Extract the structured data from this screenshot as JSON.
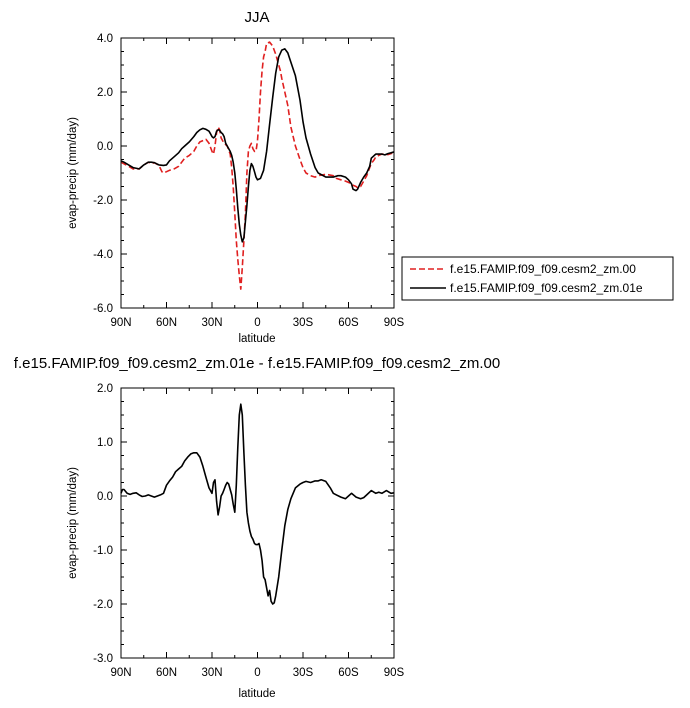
{
  "colors": {
    "series_0": "#e02020",
    "series_1": "#000000",
    "axis": "#000000"
  },
  "chart_data": [
    {
      "type": "line",
      "title": "JJA",
      "xlabel": "latitude",
      "ylabel": "evap-precip (mm/day)",
      "xlim": [
        90,
        -90
      ],
      "ylim": [
        -6.0,
        4.0
      ],
      "xticks": [
        90,
        60,
        30,
        0,
        -30,
        -60,
        -90
      ],
      "xtick_labels": [
        "90N",
        "60N",
        "30N",
        "0",
        "30S",
        "60S",
        "90S"
      ],
      "yticks": [
        -6.0,
        -4.0,
        -2.0,
        0.0,
        2.0,
        4.0
      ],
      "ytick_labels": [
        "-6.0",
        "-4.0",
        "-2.0",
        "0.0",
        "2.0",
        "4.0"
      ],
      "grid": false,
      "legend_position": "outside-right",
      "series": [
        {
          "name": "f.e15.FAMIP.f09_f09.cesm2_zm.00",
          "style": "dashed",
          "color": "#e02020",
          "x": [
            90,
            85,
            82,
            78,
            75,
            72,
            70,
            68,
            65,
            63,
            62,
            60,
            58,
            55,
            52,
            50,
            48,
            45,
            42,
            40,
            38,
            36,
            34,
            32,
            30,
            29,
            28,
            27,
            26,
            25,
            24,
            23,
            22,
            20,
            18,
            17,
            16,
            15,
            14,
            13,
            12,
            11,
            10,
            9,
            8,
            7,
            6,
            5,
            4,
            3,
            2,
            1,
            0,
            -1,
            -2,
            -3,
            -4,
            -5,
            -6,
            -8,
            -10,
            -12,
            -14,
            -15,
            -16,
            -18,
            -20,
            -22,
            -25,
            -28,
            -30,
            -32,
            -35,
            -38,
            -40,
            -45,
            -50,
            -52,
            -55,
            -58,
            -60,
            -62,
            -63,
            -65,
            -66,
            -68,
            -70,
            -72,
            -74,
            -75,
            -77,
            -78,
            -80,
            -82,
            -84,
            -86,
            -88,
            -90
          ],
          "y": [
            -0.6,
            -0.75,
            -0.85,
            -0.85,
            -0.7,
            -0.6,
            -0.65,
            -0.62,
            -0.72,
            -0.95,
            -1.0,
            -0.95,
            -0.9,
            -0.85,
            -0.75,
            -0.6,
            -0.45,
            -0.35,
            -0.2,
            0.0,
            0.15,
            0.2,
            0.25,
            0.1,
            -0.2,
            -0.3,
            0.0,
            0.5,
            0.7,
            0.6,
            0.3,
            0.2,
            0.1,
            0.0,
            -0.3,
            -0.8,
            -1.5,
            -2.5,
            -3.5,
            -4.2,
            -4.8,
            -5.3,
            -4.5,
            -3.5,
            -2.5,
            -1.0,
            -0.2,
            0.0,
            0.1,
            -0.1,
            -0.2,
            -0.2,
            0.2,
            1.0,
            2.0,
            2.8,
            3.3,
            3.5,
            3.8,
            3.85,
            3.7,
            3.4,
            3.0,
            2.8,
            2.5,
            2.0,
            1.5,
            0.7,
            0.0,
            -0.5,
            -0.8,
            -1.0,
            -1.1,
            -1.15,
            -1.1,
            -1.05,
            -1.1,
            -1.2,
            -1.25,
            -1.3,
            -1.35,
            -1.4,
            -1.45,
            -1.5,
            -1.55,
            -1.5,
            -1.3,
            -1.1,
            -0.8,
            -0.65,
            -0.5,
            -0.4,
            -0.35,
            -0.3,
            -0.3,
            -0.32,
            -0.28,
            -0.25
          ]
        },
        {
          "name": "f.e15.FAMIP.f09_f09.cesm2_zm.01e",
          "style": "solid",
          "color": "#000000",
          "x": [
            90,
            88,
            85,
            82,
            78,
            75,
            72,
            70,
            68,
            65,
            62,
            60,
            58,
            55,
            52,
            50,
            48,
            45,
            42,
            40,
            38,
            36,
            34,
            32,
            31,
            30,
            29,
            28,
            27,
            26,
            25,
            24,
            23,
            22,
            21,
            20,
            18,
            17,
            16,
            15,
            14,
            13,
            12,
            11,
            10,
            9,
            8,
            7,
            6,
            5,
            4,
            3,
            2,
            1,
            0,
            -2,
            -4,
            -6,
            -8,
            -10,
            -12,
            -14,
            -16,
            -18,
            -20,
            -22,
            -25,
            -28,
            -30,
            -32,
            -35,
            -38,
            -40,
            -45,
            -50,
            -53,
            -55,
            -58,
            -60,
            -62,
            -63,
            -65,
            -66,
            -68,
            -70,
            -72,
            -74,
            -75,
            -77,
            -78,
            -80,
            -82,
            -84,
            -86,
            -88,
            -90
          ],
          "y": [
            -0.55,
            -0.6,
            -0.7,
            -0.8,
            -0.85,
            -0.7,
            -0.6,
            -0.6,
            -0.62,
            -0.7,
            -0.72,
            -0.7,
            -0.55,
            -0.4,
            -0.25,
            -0.1,
            0.0,
            0.15,
            0.35,
            0.5,
            0.6,
            0.65,
            0.62,
            0.55,
            0.45,
            0.35,
            0.3,
            0.35,
            0.55,
            0.6,
            0.58,
            0.5,
            0.45,
            0.35,
            0.1,
            0.0,
            -0.2,
            -0.35,
            -0.6,
            -1.0,
            -1.6,
            -2.3,
            -2.9,
            -3.3,
            -3.55,
            -3.4,
            -2.8,
            -2.2,
            -1.5,
            -0.9,
            -0.65,
            -0.75,
            -0.95,
            -1.15,
            -1.25,
            -1.2,
            -0.9,
            -0.2,
            0.8,
            1.8,
            2.7,
            3.3,
            3.55,
            3.6,
            3.45,
            3.1,
            2.6,
            1.7,
            0.9,
            0.3,
            -0.3,
            -0.8,
            -1.0,
            -1.15,
            -1.15,
            -1.1,
            -1.1,
            -1.15,
            -1.25,
            -1.4,
            -1.6,
            -1.65,
            -1.6,
            -1.35,
            -1.15,
            -1.0,
            -0.75,
            -0.45,
            -0.35,
            -0.3,
            -0.3,
            -0.3,
            -0.33,
            -0.28,
            -0.25,
            -0.22
          ]
        }
      ]
    },
    {
      "type": "line",
      "title": "f.e15.FAMIP.f09_f09.cesm2_zm.01e - f.e15.FAMIP.f09_f09.cesm2_zm.00",
      "xlabel": "latitude",
      "ylabel": "evap-precip (mm/day)",
      "xlim": [
        90,
        -90
      ],
      "ylim": [
        -3.0,
        2.0
      ],
      "xticks": [
        90,
        60,
        30,
        0,
        -30,
        -60,
        -90
      ],
      "xtick_labels": [
        "90N",
        "60N",
        "30N",
        "0",
        "30S",
        "60S",
        "90S"
      ],
      "yticks": [
        -3.0,
        -2.0,
        -1.0,
        0.0,
        1.0,
        2.0
      ],
      "ytick_labels": [
        "-3.0",
        "-2.0",
        "-1.0",
        "0.0",
        "1.0",
        "2.0"
      ],
      "grid": false,
      "series": [
        {
          "style": "solid",
          "color": "#000000",
          "x": [
            90,
            89,
            88,
            86,
            84,
            82,
            80,
            78,
            76,
            74,
            72,
            70,
            68,
            66,
            64,
            62,
            60,
            58,
            56,
            54,
            52,
            50,
            48,
            46,
            44,
            42,
            40,
            38,
            36,
            34,
            32,
            30,
            29,
            28,
            27,
            26,
            25,
            24,
            23,
            22,
            21,
            20,
            19,
            18,
            17,
            16,
            15,
            14,
            13,
            12,
            11,
            10,
            9,
            8,
            7,
            6,
            5,
            4,
            3,
            2,
            1,
            0,
            -1,
            -2,
            -3,
            -4,
            -5,
            -6,
            -7,
            -8,
            -9,
            -10,
            -11,
            -12,
            -14,
            -16,
            -18,
            -20,
            -22,
            -25,
            -28,
            -30,
            -32,
            -35,
            -38,
            -40,
            -42,
            -45,
            -48,
            -50,
            -52,
            -55,
            -58,
            -60,
            -62,
            -65,
            -68,
            -70,
            -72,
            -75,
            -78,
            -80,
            -82,
            -85,
            -88,
            -90
          ],
          "y": [
            0.05,
            0.12,
            0.12,
            0.05,
            0.03,
            0.05,
            0.06,
            0.02,
            -0.01,
            0.0,
            0.02,
            0.0,
            -0.02,
            0.0,
            0.02,
            0.05,
            0.2,
            0.28,
            0.35,
            0.45,
            0.5,
            0.55,
            0.65,
            0.72,
            0.78,
            0.8,
            0.8,
            0.72,
            0.55,
            0.35,
            0.15,
            0.05,
            0.25,
            0.3,
            -0.1,
            -0.35,
            -0.2,
            0.0,
            0.05,
            0.12,
            0.2,
            0.25,
            0.22,
            0.12,
            0.02,
            -0.15,
            -0.3,
            0.2,
            0.9,
            1.5,
            1.7,
            1.5,
            0.8,
            0.2,
            -0.3,
            -0.5,
            -0.65,
            -0.75,
            -0.8,
            -0.88,
            -0.9,
            -0.9,
            -0.88,
            -1.0,
            -1.2,
            -1.5,
            -1.55,
            -1.7,
            -1.85,
            -1.75,
            -1.95,
            -2.0,
            -1.98,
            -1.85,
            -1.5,
            -1.0,
            -0.55,
            -0.25,
            -0.05,
            0.15,
            0.22,
            0.25,
            0.27,
            0.25,
            0.28,
            0.28,
            0.3,
            0.27,
            0.15,
            0.05,
            0.02,
            -0.02,
            -0.05,
            0.0,
            0.05,
            -0.02,
            -0.05,
            -0.03,
            0.02,
            0.1,
            0.05,
            0.07,
            0.05,
            0.1,
            0.05,
            0.06
          ]
        }
      ]
    }
  ]
}
